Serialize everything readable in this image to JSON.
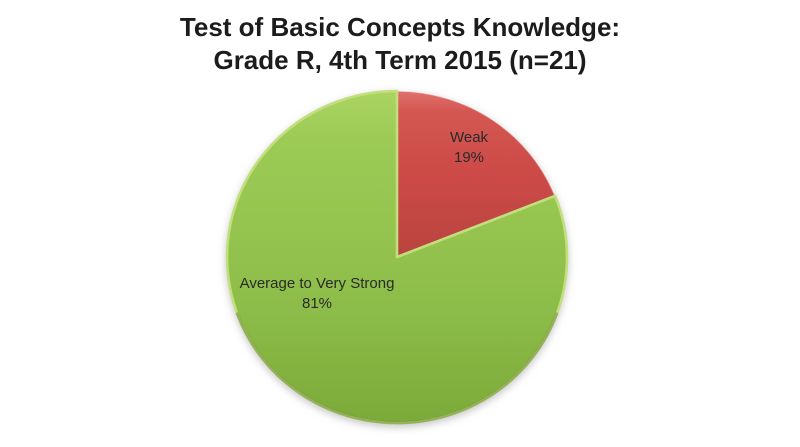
{
  "page": {
    "background_color": "#ffffff"
  },
  "header": {
    "title_lines": [
      "Test of Basic Concepts Knowledge:",
      "Grade R, 4th Term 2015 (n=21)"
    ],
    "title_color": "#1c1c1c"
  },
  "chart_data": {
    "type": "pie",
    "title": "Test of Basic Concepts Knowledge: Grade R, 4th Term 2015 (n=21)",
    "sample_size_n": 21,
    "start_angle_deg": 0,
    "direction": "clockwise",
    "legend": "none",
    "data_label_style": "category name and percentage inside slices",
    "slices": [
      {
        "label": "Weak",
        "value_pct": 19,
        "color": "#CB4946",
        "label_lines": [
          "Weak",
          "19%"
        ]
      },
      {
        "label": "Average to Very Strong",
        "value_pct": 81,
        "color": "#8FBF4B",
        "label_lines": [
          "Average to Very Strong",
          "81%"
        ]
      }
    ]
  }
}
